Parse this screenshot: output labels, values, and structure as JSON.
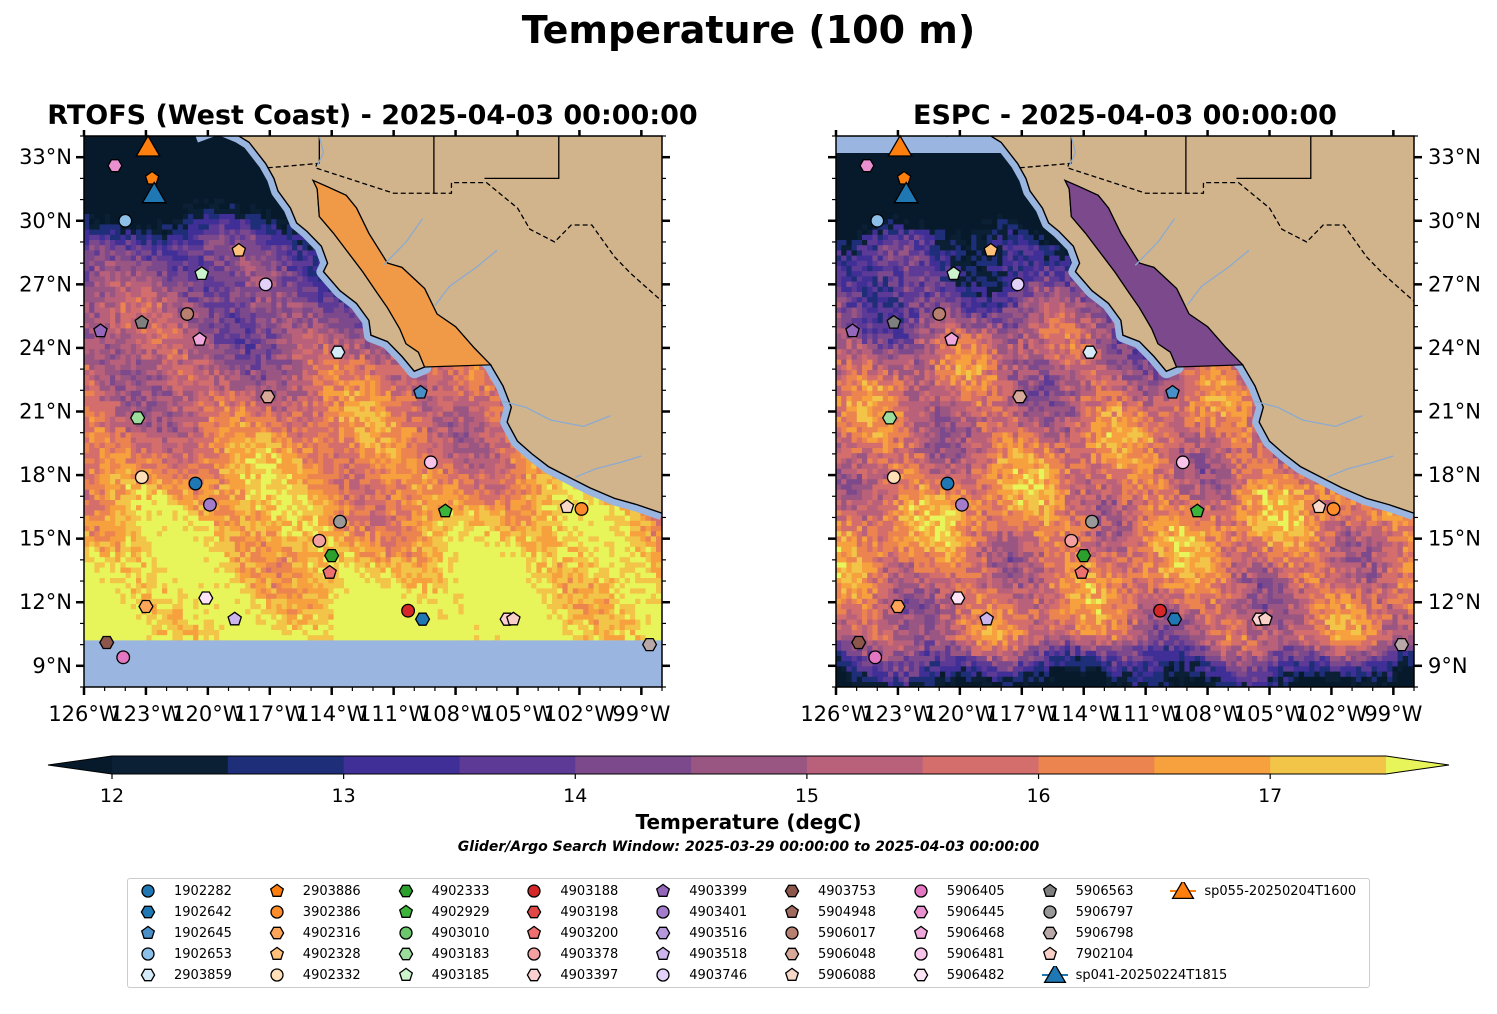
{
  "suptitle": "Temperature (100 m)",
  "panels": [
    {
      "title": "RTOFS (West Coast) - 2025-04-03 00:00:00"
    },
    {
      "title": "ESPC - 2025-04-03 00:00:00"
    }
  ],
  "map_extent": {
    "lon": [
      -126,
      -98
    ],
    "lat": [
      8,
      34
    ]
  },
  "lon_ticks": [
    {
      "value": -126,
      "label": "126°W"
    },
    {
      "value": -123,
      "label": "123°W"
    },
    {
      "value": -120,
      "label": "120°W"
    },
    {
      "value": -117,
      "label": "117°W"
    },
    {
      "value": -114,
      "label": "114°W"
    },
    {
      "value": -111,
      "label": "111°W"
    },
    {
      "value": -108,
      "label": "108°W"
    },
    {
      "value": -105,
      "label": "105°W"
    },
    {
      "value": -102,
      "label": "102°W"
    },
    {
      "value": -99,
      "label": "99°W"
    }
  ],
  "lat_ticks": [
    {
      "value": 33,
      "label": "33°N"
    },
    {
      "value": 30,
      "label": "30°N"
    },
    {
      "value": 27,
      "label": "27°N"
    },
    {
      "value": 24,
      "label": "24°N"
    },
    {
      "value": 21,
      "label": "21°N"
    },
    {
      "value": 18,
      "label": "18°N"
    },
    {
      "value": 15,
      "label": "15°N"
    },
    {
      "value": 12,
      "label": "12°N"
    },
    {
      "value": 9,
      "label": "9°N"
    }
  ],
  "colors": {
    "land": "#d2b48c",
    "ocean_nodata": "#9ab6e0",
    "coast": "#000000",
    "rivers": "#8aaad0"
  },
  "colorbar": {
    "min": 12,
    "max": 17.5,
    "step": 0.5,
    "ticks": [
      "12",
      "13",
      "14",
      "15",
      "16",
      "17"
    ],
    "label": "Temperature (degC)",
    "colors": [
      "#0b2035",
      "#1f2e78",
      "#3f2f96",
      "#5c3a96",
      "#7c4a8c",
      "#9a5682",
      "#b9607a",
      "#d46e6c",
      "#ec8450",
      "#f7a03e",
      "#f2c548"
    ],
    "under_color": "#061a2c",
    "over_color": "#e8f55a"
  },
  "search_window": "Glider/Argo Search Window: 2025-03-29 00:00:00 to 2025-04-03 00:00:00",
  "legend": [
    {
      "label": "1902282",
      "marker": "circle",
      "color": "#1f77b4"
    },
    {
      "label": "1902642",
      "marker": "hexagon",
      "color": "#1f77b4"
    },
    {
      "label": "1902645",
      "marker": "pentagon",
      "color": "#4a90c8"
    },
    {
      "label": "1902653",
      "marker": "circle",
      "color": "#8cc0e8"
    },
    {
      "label": "2903859",
      "marker": "hexagon",
      "color": "#d6ebf8"
    },
    {
      "label": "2903886",
      "marker": "pentagon",
      "color": "#ff7f0e"
    },
    {
      "label": "3902386",
      "marker": "circle",
      "color": "#ff8c2a"
    },
    {
      "label": "4902316",
      "marker": "hexagon",
      "color": "#ffa55a"
    },
    {
      "label": "4902328",
      "marker": "pentagon",
      "color": "#ffc07a"
    },
    {
      "label": "4902332",
      "marker": "circle",
      "color": "#ffe0b8"
    },
    {
      "label": "4902333",
      "marker": "hexagon",
      "color": "#2ca02c"
    },
    {
      "label": "4902929",
      "marker": "pentagon",
      "color": "#3cb43c"
    },
    {
      "label": "4903010",
      "marker": "circle",
      "color": "#6cc66c"
    },
    {
      "label": "4903183",
      "marker": "hexagon",
      "color": "#9cdc9c"
    },
    {
      "label": "4903185",
      "marker": "pentagon",
      "color": "#ccf4cc"
    },
    {
      "label": "4903188",
      "marker": "circle",
      "color": "#d62728"
    },
    {
      "label": "4903198",
      "marker": "hexagon",
      "color": "#e04848"
    },
    {
      "label": "4903200",
      "marker": "pentagon",
      "color": "#ee7070"
    },
    {
      "label": "4903378",
      "marker": "circle",
      "color": "#f4a0a0"
    },
    {
      "label": "4903397",
      "marker": "hexagon",
      "color": "#fcd0d0"
    },
    {
      "label": "4903399",
      "marker": "pentagon",
      "color": "#9467bd"
    },
    {
      "label": "4903401",
      "marker": "circle",
      "color": "#a47ccc"
    },
    {
      "label": "4903516",
      "marker": "hexagon",
      "color": "#b898dc"
    },
    {
      "label": "4903518",
      "marker": "pentagon",
      "color": "#ccb4ec"
    },
    {
      "label": "4903746",
      "marker": "circle",
      "color": "#e2d2fa"
    },
    {
      "label": "4903753",
      "marker": "hexagon",
      "color": "#8c564b"
    },
    {
      "label": "5904948",
      "marker": "pentagon",
      "color": "#a06a5e"
    },
    {
      "label": "5906017",
      "marker": "circle",
      "color": "#b88070"
    },
    {
      "label": "5906048",
      "marker": "hexagon",
      "color": "#d8a898"
    },
    {
      "label": "5906088",
      "marker": "pentagon",
      "color": "#f8d8c8"
    },
    {
      "label": "5906405",
      "marker": "circle",
      "color": "#e377c2"
    },
    {
      "label": "5906445",
      "marker": "hexagon",
      "color": "#e890d0"
    },
    {
      "label": "5906468",
      "marker": "pentagon",
      "color": "#f0a8dc"
    },
    {
      "label": "5906481",
      "marker": "circle",
      "color": "#f8c4ea"
    },
    {
      "label": "5906482",
      "marker": "hexagon",
      "color": "#fce4f6"
    },
    {
      "label": "5906563",
      "marker": "pentagon",
      "color": "#7f7f7f"
    },
    {
      "label": "5906797",
      "marker": "circle",
      "color": "#999999"
    },
    {
      "label": "5906798",
      "marker": "hexagon",
      "color": "#b8a8a8"
    },
    {
      "label": "7902104",
      "marker": "pentagon",
      "color": "#f8d0c8"
    },
    {
      "label": "sp041-20250224T1815",
      "marker": "triangle",
      "color": "#1f77b4"
    },
    {
      "label": "sp055-20250204T1600",
      "marker": "triangle",
      "color": "#ff7f0e"
    }
  ],
  "platforms": [
    {
      "id": "1902282",
      "lon": -120.6,
      "lat": 17.6
    },
    {
      "id": "1902642",
      "lon": -109.6,
      "lat": 11.2
    },
    {
      "id": "1902645",
      "lon": -109.7,
      "lat": 21.9
    },
    {
      "id": "1902653",
      "lon": -124.0,
      "lat": 30.0
    },
    {
      "id": "2903859",
      "lon": -113.7,
      "lat": 23.8
    },
    {
      "id": "2903886",
      "lon": -122.7,
      "lat": 32.0
    },
    {
      "id": "3902386",
      "lon": -101.9,
      "lat": 16.4
    },
    {
      "id": "4902316",
      "lon": -123.0,
      "lat": 11.8
    },
    {
      "id": "4902328",
      "lon": -118.5,
      "lat": 28.6
    },
    {
      "id": "4902332",
      "lon": -123.2,
      "lat": 17.9
    },
    {
      "id": "4902333",
      "lon": -114.0,
      "lat": 14.2
    },
    {
      "id": "4902929",
      "lon": -108.5,
      "lat": 16.3
    },
    {
      "id": "4903185",
      "lon": -120.3,
      "lat": 27.5
    },
    {
      "id": "4903188",
      "lon": -110.3,
      "lat": 11.6
    },
    {
      "id": "4903200",
      "lon": -114.1,
      "lat": 13.4
    },
    {
      "id": "4903378",
      "lon": -114.6,
      "lat": 14.9
    },
    {
      "id": "4903397",
      "lon": -105.5,
      "lat": 11.2
    },
    {
      "id": "4903399",
      "lon": -125.2,
      "lat": 24.8
    },
    {
      "id": "4903401",
      "lon": -119.9,
      "lat": 16.6
    },
    {
      "id": "4903518",
      "lon": -118.7,
      "lat": 11.2
    },
    {
      "id": "4903746",
      "lon": -117.2,
      "lat": 27.0
    },
    {
      "id": "4903753",
      "lon": -124.9,
      "lat": 10.1
    },
    {
      "id": "5906017",
      "lon": -121.0,
      "lat": 25.6
    },
    {
      "id": "5906048",
      "lon": -117.1,
      "lat": 21.7
    },
    {
      "id": "5906088",
      "lon": -102.6,
      "lat": 16.5
    },
    {
      "id": "5906405",
      "lon": -124.1,
      "lat": 9.4
    },
    {
      "id": "5906468",
      "lon": -120.4,
      "lat": 24.4
    },
    {
      "id": "5906481",
      "lon": -109.2,
      "lat": 18.6
    },
    {
      "id": "5906482",
      "lon": -120.1,
      "lat": 12.2
    },
    {
      "id": "5906563",
      "lon": -123.2,
      "lat": 25.2
    },
    {
      "id": "5906797",
      "lon": -113.6,
      "lat": 15.8
    },
    {
      "id": "5906798",
      "lon": -98.6,
      "lat": 10.0
    },
    {
      "id": "7902104",
      "lon": -105.2,
      "lat": 11.2
    },
    {
      "id": "5906445",
      "lon": -124.5,
      "lat": 32.6
    },
    {
      "id": "4903183",
      "lon": -123.4,
      "lat": 20.7
    },
    {
      "id": "sp041-20250224T1815",
      "lon": -122.6,
      "lat": 31.3
    },
    {
      "id": "sp055-20250204T1600",
      "lon": -122.9,
      "lat": 33.5
    }
  ]
}
